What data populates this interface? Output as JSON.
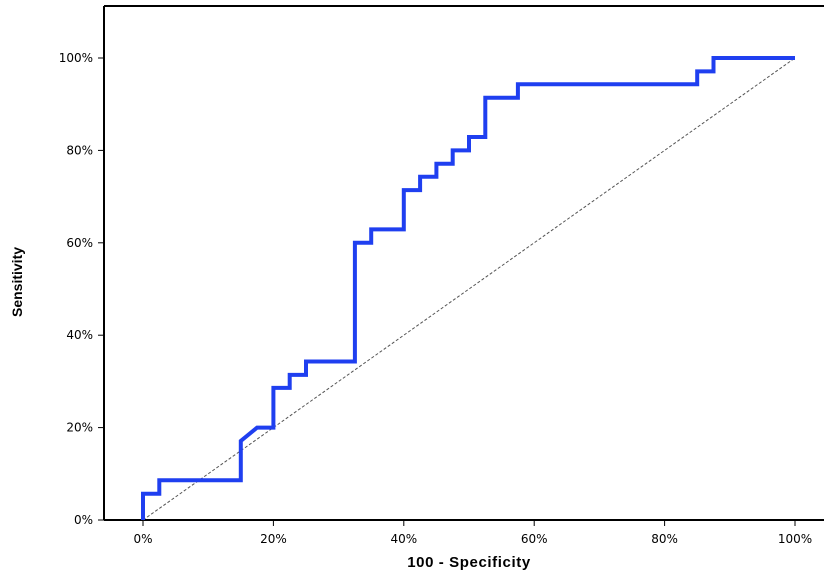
{
  "chart_data": {
    "type": "line",
    "title": "",
    "xlabel": "100 - Specificity",
    "ylabel": "Sensitivity",
    "xlim": [
      0,
      100
    ],
    "ylim": [
      0,
      100
    ],
    "xticks": [
      0,
      20,
      40,
      60,
      80,
      100
    ],
    "yticks": [
      0,
      20,
      40,
      60,
      80,
      100
    ],
    "xtick_labels": [
      "0%",
      "20%",
      "40%",
      "60%",
      "80%",
      "100%"
    ],
    "ytick_labels": [
      "0%",
      "20%",
      "40%",
      "60%",
      "80%",
      "100%"
    ],
    "grid": false,
    "series": [
      {
        "role": "roc-curve",
        "color": "#1f3ff0",
        "x": [
          0,
          0,
          2.5,
          2.5,
          15,
          15,
          17.5,
          20,
          20,
          22.5,
          22.5,
          25,
          25,
          32.5,
          32.5,
          35,
          35,
          40,
          40,
          42.5,
          42.5,
          45,
          45,
          47.5,
          47.5,
          50,
          50,
          52.5,
          52.5,
          57.5,
          57.5,
          85,
          85,
          87.5,
          87.5,
          100
        ],
        "y": [
          0,
          5.7,
          5.7,
          8.6,
          8.6,
          17.1,
          20,
          20,
          28.6,
          28.6,
          31.4,
          31.4,
          34.3,
          34.3,
          60,
          60,
          62.9,
          62.9,
          71.4,
          71.4,
          74.3,
          74.3,
          77.1,
          77.1,
          80,
          80,
          82.9,
          82.9,
          91.4,
          91.4,
          94.3,
          94.3,
          97.1,
          97.1,
          100,
          100
        ]
      },
      {
        "role": "reference-diagonal",
        "color": "#555555",
        "x": [
          0,
          100
        ],
        "y": [
          0,
          100
        ]
      }
    ]
  }
}
